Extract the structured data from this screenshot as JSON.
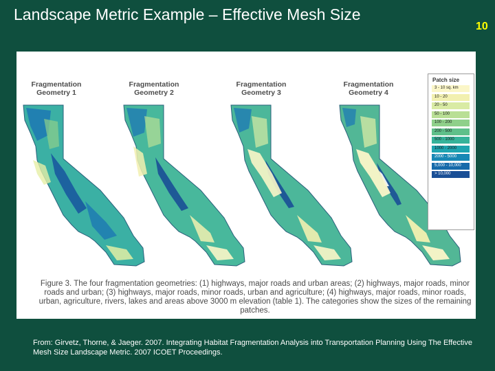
{
  "slide": {
    "title": "Landscape Metric Example – Effective Mesh Size",
    "number": "10"
  },
  "figure": {
    "geometries": [
      {
        "line1": "Fragmentation",
        "line2": "Geometry 1"
      },
      {
        "line1": "Fragmentation",
        "line2": "Geometry 2"
      },
      {
        "line1": "Fragmentation",
        "line2": "Geometry 3"
      },
      {
        "line1": "Fragmentation",
        "line2": "Geometry 4"
      }
    ],
    "legend": {
      "title": "Patch size",
      "items": [
        {
          "label": "3 - 10 sq. km",
          "color": "#fbf6c8"
        },
        {
          "label": "10 - 20",
          "color": "#f2f0b0"
        },
        {
          "label": "20 - 50",
          "color": "#d9eba4"
        },
        {
          "label": "50 - 100",
          "color": "#b9df95"
        },
        {
          "label": "100 - 200",
          "color": "#8fd08a"
        },
        {
          "label": "200 - 500",
          "color": "#5fc08a"
        },
        {
          "label": "500 - 1000",
          "color": "#36b39a"
        },
        {
          "label": "1000 - 2000",
          "color": "#1ea5b0"
        },
        {
          "label": "2000 - 5000",
          "color": "#1888b5"
        },
        {
          "label": "5,000 - 10,000",
          "color": "#166aaa"
        },
        {
          "label": "> 10,000",
          "color": "#1a4f96"
        }
      ]
    },
    "caption": "Figure 3. The four fragmentation geometries: (1) highways, major roads and urban areas; (2) highways, major roads, minor roads and urban; (3) highways, major roads, minor roads, urban and agriculture; (4) highways, major roads, minor roads, urban, agriculture, rivers, lakes and areas above 3000 m elevation (table 1). The categories show the sizes of the remaining patches."
  },
  "source": {
    "text": "From: Girvetz, Thorne, & Jaeger. 2007. Integrating Habitat Fragmentation Analysis into Transportation Planning Using The Effective Mesh Size Landscape Metric. 2007 ICOET Proceedings."
  }
}
